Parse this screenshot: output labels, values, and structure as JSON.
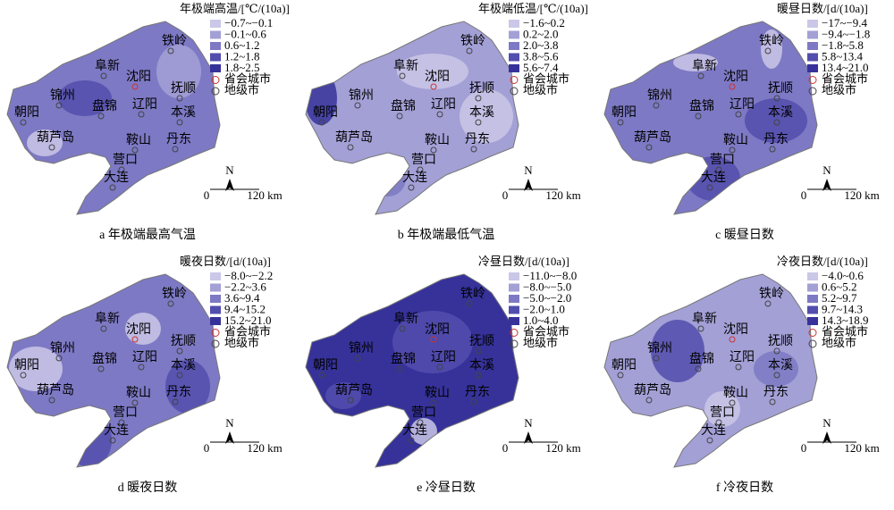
{
  "panels": [
    {
      "legend_title": "年极端高温/[℃/(10a)]",
      "classes": [
        "−0.7~−0.1",
        "−0.1~0.6",
        "0.6~1.2",
        "1.2~1.8",
        "1.8~2.5"
      ],
      "caption": "a 年极端最高气温"
    },
    {
      "legend_title": "年极端低温/[℃/(10a)]",
      "classes": [
        "−1.6~0.2",
        "0.2~2.0",
        "2.0~3.8",
        "3.8~5.6",
        "5.6~7.4"
      ],
      "caption": "b 年极端最低气温"
    },
    {
      "legend_title": "暖昼日数/[d/(10a)]",
      "classes": [
        "−17~−9.4",
        "−9.4~−1.8",
        "−1.8~5.8",
        "5.8~13.4",
        "13.4~21.0"
      ],
      "caption": "c 暖昼日数"
    },
    {
      "legend_title": "暖夜日数/[d/(10a)]",
      "classes": [
        "−8.0~−2.2",
        "−2.2~3.6",
        "3.6~9.4",
        "9.4~15.2",
        "15.2~21.0"
      ],
      "caption": "d 暖夜日数"
    },
    {
      "legend_title": "冷昼日数/[d/(10a)]",
      "classes": [
        "−11.0~−8.0",
        "−8.0~−5.0",
        "−5.0~−2.0",
        "−2.0~1.0",
        "1.0~4.0"
      ],
      "caption": "e 冷昼日数"
    },
    {
      "legend_title": "冷夜日数/[d/(10a)]",
      "classes": [
        "−4.0~0.6",
        "0.6~5.2",
        "5.2~9.7",
        "9.7~14.3",
        "14.3~18.9"
      ],
      "caption": "f 冷夜日数"
    }
  ],
  "cities": [
    "铁岭",
    "阜新",
    "沈阳",
    "抚顺",
    "锦州",
    "盘锦",
    "辽阳",
    "本溪",
    "朝阳",
    "葫芦岛",
    "鞍山",
    "丹东",
    "营口",
    "大连"
  ],
  "symbols": [
    "省会城市",
    "地级市"
  ],
  "north": "N",
  "scale": [
    "0",
    "120 km"
  ]
}
